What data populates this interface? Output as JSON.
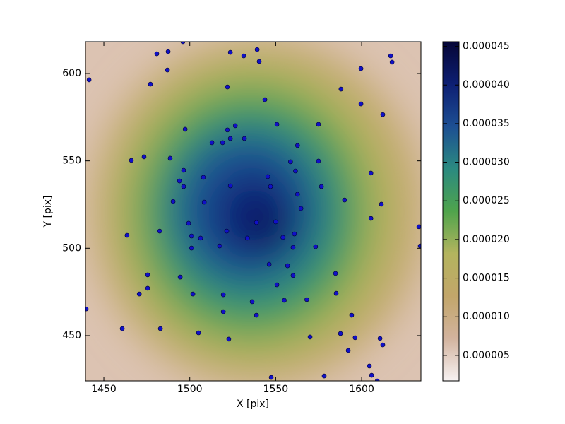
{
  "chart_data": {
    "type": "scatter",
    "xlabel": "X [pix]",
    "ylabel": "Y [pix]",
    "xlim": [
      1439.3,
      1634.5
    ],
    "ylim": [
      424.1,
      618.2
    ],
    "xticks": [
      1450,
      1500,
      1550,
      1600
    ],
    "yticks": [
      450,
      500,
      550,
      600
    ],
    "color": "#1010c8",
    "x": [
      1441.4,
      1480.8,
      1487.4,
      1496.0,
      1477.1,
      1487.0,
      1523.6,
      1531.4,
      1539.2,
      1540.4,
      1616.9,
      1617.7,
      1599.6,
      1588.0,
      1521.9,
      1543.7,
      1599.6,
      1612.3,
      1550.7,
      1574.9,
      1497.3,
      1521.9,
      1526.5,
      1512.9,
      1519.1,
      1523.6,
      1531.8,
      1562.7,
      1473.4,
      1466.0,
      1488.6,
      1558.6,
      1574.9,
      1496.4,
      1561.5,
      1605.4,
      1507.9,
      1545.4,
      1494.0,
      1496.4,
      1523.6,
      1547.0,
      1576.6,
      1562.7,
      1590.1,
      1490.3,
      1508.4,
      1611.5,
      1564.7,
      1605.4,
      1538.8,
      1550.0,
      1499.3,
      1633.3,
      1482.5,
      1521.5,
      1463.5,
      1501.0,
      1560.9,
      1506.3,
      1533.5,
      1554.2,
      1517.4,
      1501.0,
      1573.2,
      1560.1,
      1634.1,
      1546.2,
      1556.9,
      1584.8,
      1475.5,
      1560.1,
      1494.4,
      1550.7,
      1475.5,
      1470.6,
      1501.8,
      1519.5,
      1585.2,
      1555.0,
      1568.1,
      1536.3,
      1439.7,
      1519.5,
      1538.8,
      1594.2,
      1460.7,
      1482.9,
      1505.1,
      1587.7,
      1570.0,
      1522.7,
      1596.2,
      1610.7,
      1612.3,
      1592.2,
      1604.5,
      1605.8,
      1547.4,
      1578.2,
      1609.1
    ],
    "y": [
      596.4,
      611.3,
      612.5,
      618.2,
      593.9,
      602.0,
      612.1,
      610.1,
      613.7,
      606.9,
      610.1,
      606.5,
      602.8,
      591.1,
      592.3,
      585.0,
      582.6,
      576.5,
      570.9,
      570.9,
      568.1,
      567.7,
      570.1,
      560.4,
      560.4,
      562.8,
      562.8,
      558.8,
      552.3,
      550.3,
      551.5,
      549.5,
      549.9,
      544.6,
      544.2,
      543.0,
      540.6,
      541.0,
      538.5,
      535.3,
      535.7,
      535.3,
      535.3,
      530.9,
      527.6,
      526.8,
      526.4,
      525.2,
      522.8,
      517.1,
      514.7,
      515.1,
      514.3,
      512.3,
      509.8,
      509.8,
      507.4,
      507.0,
      508.2,
      505.8,
      505.8,
      506.2,
      501.3,
      500.1,
      500.9,
      500.5,
      501.3,
      490.8,
      490.0,
      485.6,
      484.8,
      484.4,
      483.5,
      479.1,
      477.1,
      473.8,
      473.8,
      473.4,
      474.2,
      470.2,
      470.6,
      469.4,
      465.3,
      463.7,
      461.7,
      461.7,
      454.0,
      454.0,
      451.6,
      451.2,
      449.2,
      448.0,
      448.8,
      448.4,
      444.7,
      441.5,
      432.6,
      427.3,
      426.1,
      426.9,
      424.1
    ],
    "colorbar": {
      "clim": [
        1.7e-06,
        4.56e-05
      ],
      "colormap": [
        "#f7f2f2",
        "#d2b39e",
        "#c2a66a",
        "#b4b45e",
        "#4fa44c",
        "#2b8a80",
        "#1d4f93",
        "#0d1f73",
        "#060636"
      ],
      "ticks": [
        {
          "value": 5e-06,
          "label": "0.000005"
        },
        {
          "value": 1e-05,
          "label": "0.000010"
        },
        {
          "value": 1.5e-05,
          "label": "0.000015"
        },
        {
          "value": 2e-05,
          "label": "0.000020"
        },
        {
          "value": 2.5e-05,
          "label": "0.000025"
        },
        {
          "value": 3e-05,
          "label": "0.000030"
        },
        {
          "value": 3.5e-05,
          "label": "0.000035"
        },
        {
          "value": 4e-05,
          "label": "0.000040"
        },
        {
          "value": 4.5e-05,
          "label": "0.000045"
        }
      ]
    }
  }
}
